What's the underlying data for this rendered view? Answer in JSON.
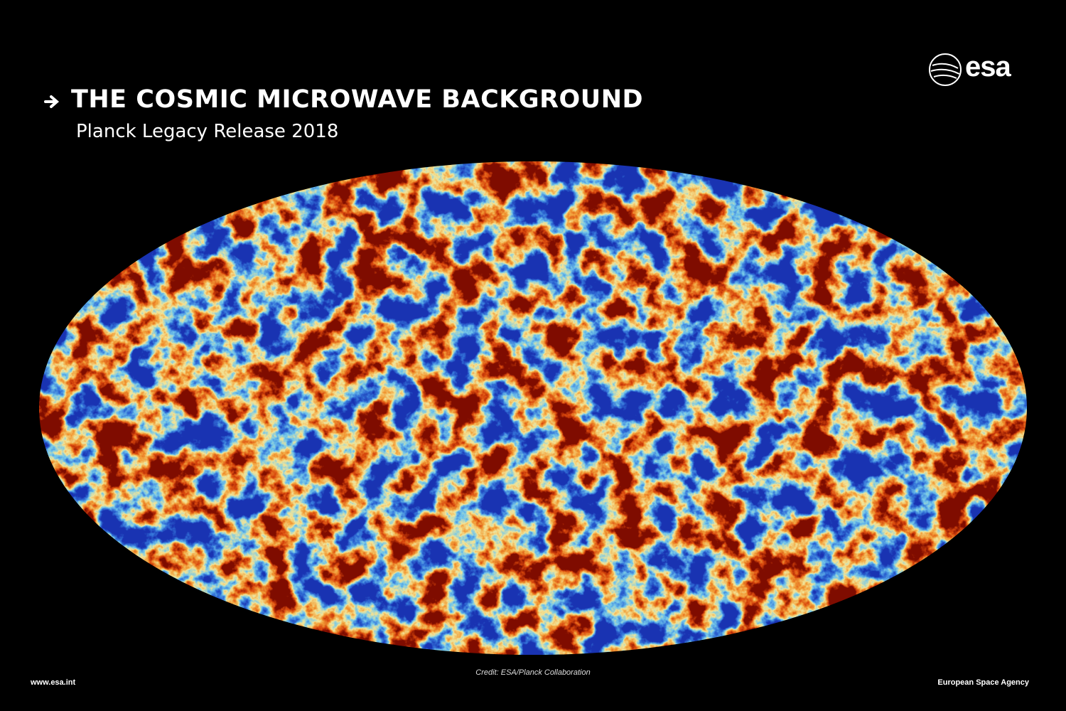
{
  "header": {
    "title": "THE COSMIC MICROWAVE BACKGROUND",
    "subtitle": "Planck Legacy Release 2018",
    "logo": "esa"
  },
  "footer": {
    "website": "www.esa.int",
    "credit": "Credit: ESA/Planck Collaboration",
    "agency": "European Space Agency"
  }
}
